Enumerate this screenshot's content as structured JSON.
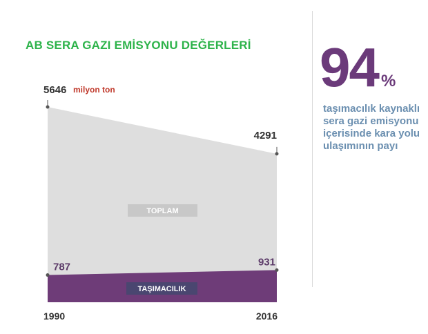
{
  "chart_data": {
    "type": "area",
    "title": "AB SERA GAZI EMİSYONU DEĞERLERİ",
    "unit": "milyon ton",
    "categories": [
      "1990",
      "2016"
    ],
    "series": [
      {
        "name": "TOPLAM",
        "values": [
          5646,
          4291
        ],
        "color": "#dedede",
        "label_color": "#c8c8c8"
      },
      {
        "name": "TAŞIMACILIK",
        "values": [
          787,
          931
        ],
        "color": "#6e3c78",
        "label_color": "#4a4670"
      }
    ],
    "ylim": [
      0,
      5646
    ],
    "grid": false
  },
  "highlight": {
    "value": "94",
    "suffix": "%",
    "description": "taşımacılık kaynaklı sera gazi emisyonu içerisinde kara yolu ulaşımının payı",
    "value_color": "#6b3a7a",
    "text_color": "#6b8fb0"
  },
  "colors": {
    "title": "#2db34a",
    "unit": "#c0392b",
    "text": "#333333"
  }
}
